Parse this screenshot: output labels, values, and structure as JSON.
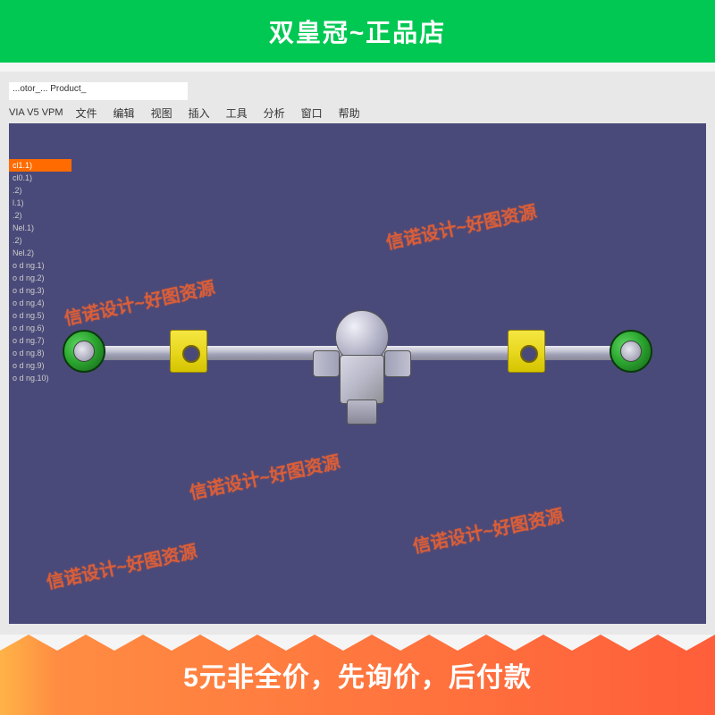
{
  "top_banner": {
    "text": "双皇冠~正品店"
  },
  "title_bar": {
    "text": "...otor_... Product_"
  },
  "menu": {
    "app": "VIA V5 VPM",
    "items": [
      "文件",
      "编辑",
      "视图",
      "插入",
      "工具",
      "分析",
      "窗口",
      "帮助"
    ]
  },
  "tree": {
    "items": [
      {
        "label": "cl1.1)",
        "selected": true
      },
      {
        "label": "cl0.1)",
        "selected": false
      },
      {
        "label": ".2)",
        "selected": false
      },
      {
        "label": "l.1)",
        "selected": false
      },
      {
        "label": ".2)",
        "selected": false
      },
      {
        "label": "Nel.1)",
        "selected": false
      },
      {
        "label": ".2)",
        "selected": false
      },
      {
        "label": "Nel.2)",
        "selected": false
      },
      {
        "label": "o d ng.1)",
        "selected": false
      },
      {
        "label": "o d ng.2)",
        "selected": false
      },
      {
        "label": "o d ng.3)",
        "selected": false
      },
      {
        "label": "o d ng.4)",
        "selected": false
      },
      {
        "label": "o d ng.5)",
        "selected": false
      },
      {
        "label": "o d ng.6)",
        "selected": false
      },
      {
        "label": "o d ng.7)",
        "selected": false
      },
      {
        "label": "o d ng.8)",
        "selected": false
      },
      {
        "label": "o d ng.9)",
        "selected": false
      },
      {
        "label": "o d ng.10)",
        "selected": false
      }
    ]
  },
  "watermark": {
    "text": "信诺设计~好图资源"
  },
  "bottom_banner": {
    "text": "5元非全价，先询价，后付款"
  },
  "colors": {
    "viewport_bg": "#4a4a7a",
    "banner_green": "#00c853",
    "bracket_yellow": "#e8d820",
    "hub_green": "#2ca830",
    "metal_light": "#d8d8e4",
    "watermark": "rgba(255,100,40,0.7)"
  }
}
